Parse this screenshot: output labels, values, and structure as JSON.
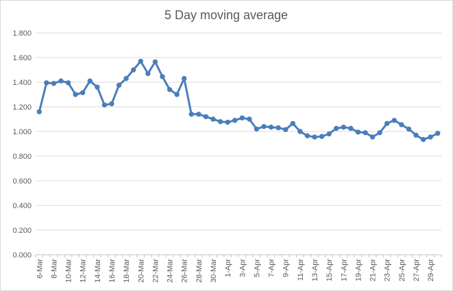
{
  "chart_data": {
    "type": "line",
    "title": "5 Day moving average",
    "xlabel": "",
    "ylabel": "",
    "ylim": [
      0,
      1.8
    ],
    "yticks": [
      "0.000",
      "0.200",
      "0.400",
      "0.600",
      "0.800",
      "1.000",
      "1.200",
      "1.400",
      "1.600",
      "1.800"
    ],
    "grid": true,
    "legend": "none",
    "line_color": "#4a7ebb",
    "x": [
      "6-Mar",
      "7-Mar",
      "8-Mar",
      "9-Mar",
      "10-Mar",
      "11-Mar",
      "12-Mar",
      "13-Mar",
      "14-Mar",
      "15-Mar",
      "16-Mar",
      "17-Mar",
      "18-Mar",
      "19-Mar",
      "20-Mar",
      "21-Mar",
      "22-Mar",
      "23-Mar",
      "24-Mar",
      "25-Mar",
      "26-Mar",
      "27-Mar",
      "28-Mar",
      "29-Mar",
      "30-Mar",
      "31-Mar",
      "1-Apr",
      "2-Apr",
      "3-Apr",
      "4-Apr",
      "5-Apr",
      "6-Apr",
      "7-Apr",
      "8-Apr",
      "9-Apr",
      "10-Apr",
      "11-Apr",
      "12-Apr",
      "13-Apr",
      "14-Apr",
      "15-Apr",
      "16-Apr",
      "17-Apr",
      "18-Apr",
      "19-Apr",
      "20-Apr",
      "21-Apr",
      "22-Apr",
      "23-Apr",
      "24-Apr",
      "25-Apr",
      "26-Apr",
      "27-Apr",
      "28-Apr",
      "29-Apr",
      "30-Apr"
    ],
    "xtick_labels": [
      "6-Mar",
      "8-Mar",
      "10-Mar",
      "12-Mar",
      "14-Mar",
      "16-Mar",
      "18-Mar",
      "20-Mar",
      "22-Mar",
      "24-Mar",
      "26-Mar",
      "28-Mar",
      "30-Mar",
      "1-Apr",
      "3-Apr",
      "5-Apr",
      "7-Apr",
      "9-Apr",
      "11-Apr",
      "13-Apr",
      "15-Apr",
      "17-Apr",
      "19-Apr",
      "21-Apr",
      "23-Apr",
      "25-Apr",
      "27-Apr",
      "29-Apr"
    ],
    "values": [
      1.16,
      1.395,
      1.39,
      1.41,
      1.395,
      1.3,
      1.315,
      1.41,
      1.36,
      1.215,
      1.225,
      1.375,
      1.43,
      1.5,
      1.57,
      1.47,
      1.565,
      1.445,
      1.34,
      1.3,
      1.43,
      1.14,
      1.14,
      1.12,
      1.1,
      1.08,
      1.075,
      1.09,
      1.11,
      1.1,
      1.02,
      1.04,
      1.035,
      1.03,
      1.015,
      1.065,
      1.0,
      0.965,
      0.955,
      0.96,
      0.98,
      1.025,
      1.035,
      1.025,
      0.995,
      0.99,
      0.955,
      0.99,
      1.065,
      1.09,
      1.055,
      1.02,
      0.97,
      0.935,
      0.955,
      0.985
    ]
  }
}
